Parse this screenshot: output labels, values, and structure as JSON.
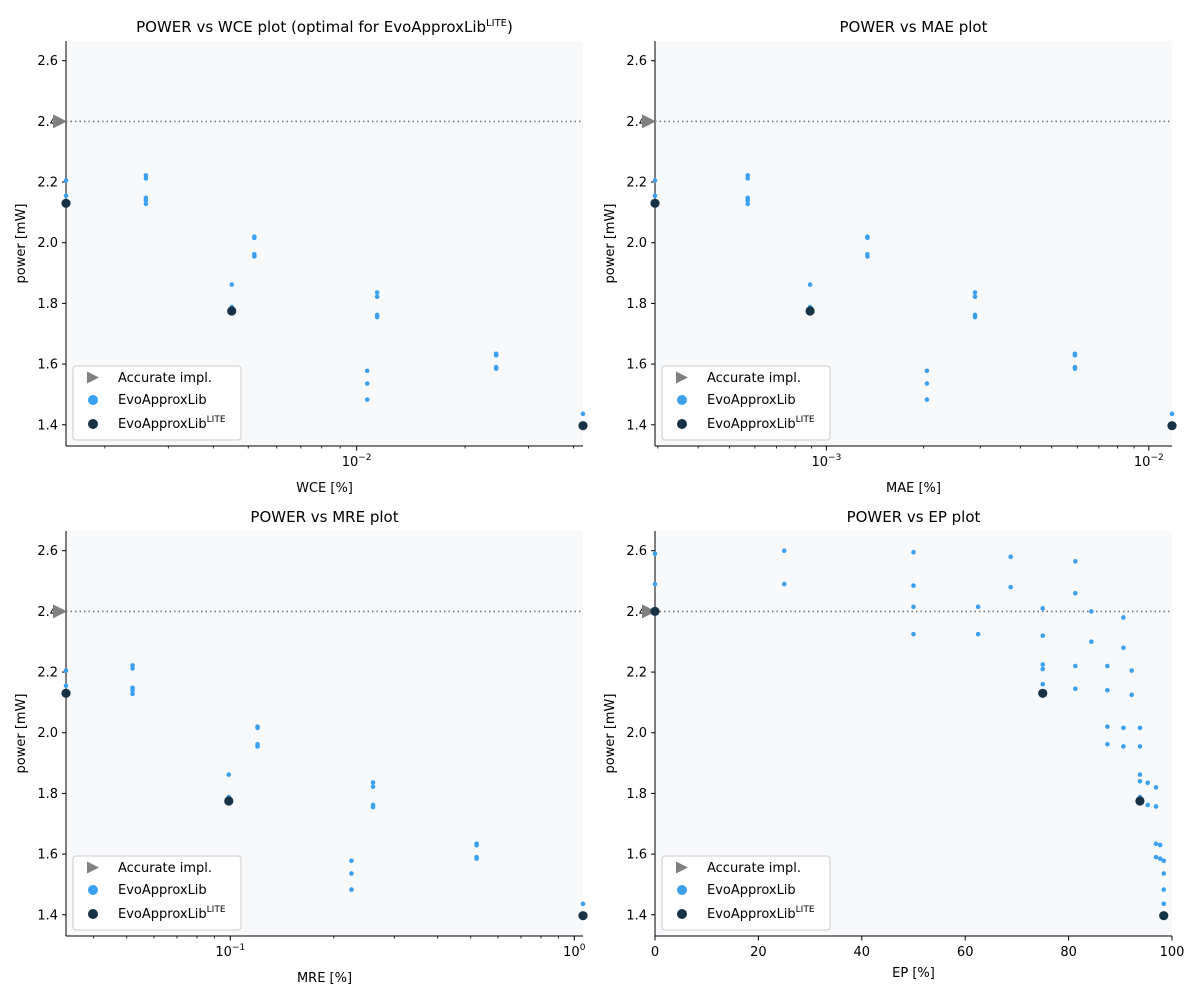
{
  "chart_data": [
    {
      "type": "scatter",
      "title": "POWER vs WCE plot (optimal for EvoApproxLib",
      "title_sup": "LITE",
      "title_suffix": ")",
      "xlabel": "WCE [%]",
      "ylabel": "power [mW]",
      "xscale": "log",
      "xlim": [
        0.00156,
        0.0425
      ],
      "ylim": [
        1.33,
        2.665
      ],
      "yticks": [
        1.4,
        1.6,
        1.8,
        2.0,
        2.2,
        2.4,
        2.6
      ],
      "xticks_major": [
        {
          "value": 0.01,
          "base": "10",
          "exp": "−2"
        }
      ],
      "xticks_minor": [
        0.002,
        0.003,
        0.004,
        0.005,
        0.006,
        0.007,
        0.008,
        0.009,
        0.02,
        0.03,
        0.04
      ],
      "accurate_power": 2.4,
      "series": [
        {
          "name": "EvoApproxLib",
          "points": [
            [
              0.00156,
              2.205
            ],
            [
              0.00156,
              2.155
            ],
            [
              0.0026,
              2.222
            ],
            [
              0.0026,
              2.212
            ],
            [
              0.0026,
              2.148
            ],
            [
              0.0026,
              2.14
            ],
            [
              0.0026,
              2.128
            ],
            [
              0.0045,
              1.862
            ],
            [
              0.0045,
              1.788
            ],
            [
              0.0045,
              1.78
            ],
            [
              0.0052,
              2.02
            ],
            [
              0.0052,
              2.016
            ],
            [
              0.0052,
              1.962
            ],
            [
              0.0052,
              1.955
            ],
            [
              0.0107,
              1.578
            ],
            [
              0.0107,
              1.536
            ],
            [
              0.0107,
              1.483
            ],
            [
              0.0114,
              1.836
            ],
            [
              0.0114,
              1.822
            ],
            [
              0.0114,
              1.762
            ],
            [
              0.0114,
              1.755
            ],
            [
              0.0244,
              1.634
            ],
            [
              0.0244,
              1.629
            ],
            [
              0.0244,
              1.59
            ],
            [
              0.0244,
              1.585
            ],
            [
              0.0425,
              1.436
            ]
          ]
        },
        {
          "name": "EvoApproxLib",
          "sup": "LITE",
          "points": [
            [
              0.00156,
              2.13
            ],
            [
              0.0045,
              1.775
            ],
            [
              0.0425,
              1.397
            ]
          ]
        }
      ]
    },
    {
      "type": "scatter",
      "title": "POWER vs MAE plot",
      "xlabel": "MAE [%]",
      "ylabel": "power [mW]",
      "xscale": "log",
      "xlim": [
        0.000294,
        0.0118
      ],
      "ylim": [
        1.33,
        2.665
      ],
      "yticks": [
        1.4,
        1.6,
        1.8,
        2.0,
        2.2,
        2.4,
        2.6
      ],
      "xticks_major": [
        {
          "value": 0.001,
          "base": "10",
          "exp": "−3"
        },
        {
          "value": 0.01,
          "base": "10",
          "exp": "−2"
        }
      ],
      "xticks_minor": [
        0.0003,
        0.0004,
        0.0005,
        0.0006,
        0.0007,
        0.0008,
        0.0009,
        0.002,
        0.003,
        0.004,
        0.005,
        0.006,
        0.007,
        0.008,
        0.009
      ],
      "accurate_power": 2.4,
      "series": [
        {
          "name": "EvoApproxLib",
          "points": [
            [
              0.000294,
              2.205
            ],
            [
              0.000294,
              2.155
            ],
            [
              0.00057,
              2.222
            ],
            [
              0.00057,
              2.212
            ],
            [
              0.00057,
              2.148
            ],
            [
              0.00057,
              2.14
            ],
            [
              0.00057,
              2.128
            ],
            [
              0.00089,
              1.862
            ],
            [
              0.00089,
              1.788
            ],
            [
              0.00089,
              1.78
            ],
            [
              0.00134,
              2.02
            ],
            [
              0.00134,
              2.016
            ],
            [
              0.00134,
              1.962
            ],
            [
              0.00134,
              1.955
            ],
            [
              0.00205,
              1.578
            ],
            [
              0.00205,
              1.536
            ],
            [
              0.00205,
              1.483
            ],
            [
              0.00289,
              1.836
            ],
            [
              0.00289,
              1.822
            ],
            [
              0.00289,
              1.762
            ],
            [
              0.00289,
              1.755
            ],
            [
              0.0059,
              1.634
            ],
            [
              0.0059,
              1.629
            ],
            [
              0.0059,
              1.59
            ],
            [
              0.0059,
              1.585
            ],
            [
              0.0118,
              1.436
            ]
          ]
        },
        {
          "name": "EvoApproxLib",
          "sup": "LITE",
          "points": [
            [
              0.000294,
              2.13
            ],
            [
              0.00089,
              1.775
            ],
            [
              0.0118,
              1.397
            ]
          ]
        }
      ]
    },
    {
      "type": "scatter",
      "title": "POWER vs MRE plot",
      "xlabel": "MRE [%]",
      "ylabel": "power [mW]",
      "xscale": "log",
      "xlim": [
        0.0333,
        1.06
      ],
      "ylim": [
        1.33,
        2.665
      ],
      "yticks": [
        1.4,
        1.6,
        1.8,
        2.0,
        2.2,
        2.4,
        2.6
      ],
      "xticks_major": [
        {
          "value": 0.1,
          "base": "10",
          "exp": "−1"
        },
        {
          "value": 1,
          "base": "10",
          "exp": "0"
        }
      ],
      "xticks_minor": [
        0.04,
        0.05,
        0.06,
        0.07,
        0.08,
        0.09,
        0.2,
        0.3,
        0.4,
        0.5,
        0.6,
        0.7,
        0.8,
        0.9
      ],
      "accurate_power": 2.4,
      "series": [
        {
          "name": "EvoApproxLib",
          "points": [
            [
              0.0333,
              2.205
            ],
            [
              0.0333,
              2.155
            ],
            [
              0.052,
              2.222
            ],
            [
              0.052,
              2.212
            ],
            [
              0.052,
              2.148
            ],
            [
              0.052,
              2.14
            ],
            [
              0.052,
              2.128
            ],
            [
              0.099,
              1.862
            ],
            [
              0.099,
              1.788
            ],
            [
              0.099,
              1.78
            ],
            [
              0.12,
              2.02
            ],
            [
              0.12,
              2.016
            ],
            [
              0.12,
              1.962
            ],
            [
              0.12,
              1.955
            ],
            [
              0.225,
              1.578
            ],
            [
              0.225,
              1.536
            ],
            [
              0.225,
              1.483
            ],
            [
              0.26,
              1.836
            ],
            [
              0.26,
              1.822
            ],
            [
              0.26,
              1.762
            ],
            [
              0.26,
              1.755
            ],
            [
              0.52,
              1.634
            ],
            [
              0.52,
              1.629
            ],
            [
              0.52,
              1.59
            ],
            [
              0.52,
              1.585
            ],
            [
              1.06,
              1.436
            ]
          ]
        },
        {
          "name": "EvoApproxLib",
          "sup": "LITE",
          "points": [
            [
              0.0333,
              2.13
            ],
            [
              0.099,
              1.775
            ],
            [
              1.06,
              1.397
            ]
          ]
        }
      ]
    },
    {
      "type": "scatter",
      "title": "POWER vs EP plot",
      "xlabel": "EP [%]",
      "ylabel": "power [mW]",
      "xscale": "linear",
      "xlim": [
        0,
        100
      ],
      "ylim": [
        1.33,
        2.665
      ],
      "yticks": [
        1.4,
        1.6,
        1.8,
        2.0,
        2.2,
        2.4,
        2.6
      ],
      "xticks_linear": [
        0,
        20,
        40,
        60,
        80,
        100
      ],
      "accurate_power": 2.4,
      "series": [
        {
          "name": "EvoApproxLib",
          "points": [
            [
              0,
              2.59
            ],
            [
              0,
              2.49
            ],
            [
              25,
              2.6
            ],
            [
              25,
              2.49
            ],
            [
              50,
              2.595
            ],
            [
              50,
              2.485
            ],
            [
              50,
              2.415
            ],
            [
              50,
              2.325
            ],
            [
              62.5,
              2.415
            ],
            [
              62.5,
              2.325
            ],
            [
              68.8,
              2.58
            ],
            [
              68.8,
              2.48
            ],
            [
              75,
              2.41
            ],
            [
              75,
              2.32
            ],
            [
              75,
              2.225
            ],
            [
              75,
              2.21
            ],
            [
              75,
              2.16
            ],
            [
              81.3,
              2.565
            ],
            [
              81.3,
              2.46
            ],
            [
              81.3,
              2.22
            ],
            [
              81.3,
              2.145
            ],
            [
              84.4,
              2.4
            ],
            [
              84.4,
              2.3
            ],
            [
              87.5,
              2.22
            ],
            [
              87.5,
              2.14
            ],
            [
              87.5,
              2.02
            ],
            [
              87.5,
              1.962
            ],
            [
              90.6,
              2.38
            ],
            [
              90.6,
              2.28
            ],
            [
              90.6,
              2.016
            ],
            [
              90.6,
              1.955
            ],
            [
              92.2,
              2.205
            ],
            [
              92.2,
              2.125
            ],
            [
              93.8,
              2.016
            ],
            [
              93.8,
              1.955
            ],
            [
              93.8,
              1.862
            ],
            [
              93.8,
              1.84
            ],
            [
              93.8,
              1.788
            ],
            [
              93.8,
              1.77
            ],
            [
              95.3,
              1.835
            ],
            [
              95.3,
              1.762
            ],
            [
              96.9,
              1.82
            ],
            [
              96.9,
              1.757
            ],
            [
              96.9,
              1.634
            ],
            [
              96.9,
              1.59
            ],
            [
              97.7,
              1.63
            ],
            [
              97.7,
              1.585
            ],
            [
              98.4,
              1.578
            ],
            [
              98.4,
              1.536
            ],
            [
              98.4,
              1.483
            ],
            [
              98.4,
              1.436
            ]
          ]
        },
        {
          "name": "EvoApproxLib",
          "sup": "LITE",
          "points": [
            [
              0,
              2.4
            ],
            [
              75,
              2.13
            ],
            [
              93.8,
              1.775
            ],
            [
              98.4,
              1.397
            ]
          ]
        }
      ]
    }
  ],
  "legend": {
    "accurate": "Accurate impl.",
    "evo": "EvoApproxLib",
    "lite": "EvoApproxLib",
    "lite_sup": "LITE"
  },
  "colors": {
    "evo": "#3aa0f0",
    "lite": "#163247",
    "accurate": "#808080",
    "axes_bg": "#f7f9fb"
  }
}
